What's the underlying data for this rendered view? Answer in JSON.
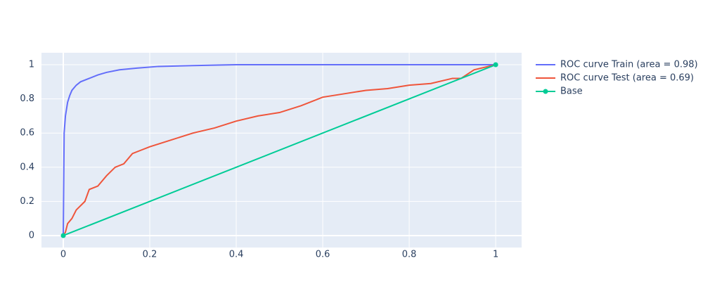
{
  "chart_data": {
    "type": "line",
    "xlim": [
      -0.0504,
      1.06
    ],
    "ylim": [
      -0.07,
      1.07
    ],
    "xticks": [
      0,
      0.2,
      0.4,
      0.6,
      0.8,
      1
    ],
    "yticks": [
      0,
      0.2,
      0.4,
      0.6,
      0.8,
      1
    ],
    "grid": true,
    "legend": "right",
    "series": [
      {
        "name": "ROC curve Train (area = 0.98)",
        "color": "#636efa",
        "markers": false,
        "x": [
          0,
          0.002,
          0.005,
          0.01,
          0.015,
          0.02,
          0.03,
          0.04,
          0.06,
          0.08,
          0.1,
          0.13,
          0.17,
          0.22,
          0.3,
          0.4,
          1
        ],
        "values": [
          0,
          0.6,
          0.7,
          0.78,
          0.82,
          0.85,
          0.88,
          0.9,
          0.92,
          0.94,
          0.955,
          0.97,
          0.98,
          0.99,
          0.995,
          1,
          1
        ]
      },
      {
        "name": "ROC curve Test (area = 0.69)",
        "color": "#ef553b",
        "markers": false,
        "x": [
          0,
          0.005,
          0.01,
          0.02,
          0.03,
          0.05,
          0.06,
          0.08,
          0.1,
          0.12,
          0.14,
          0.16,
          0.18,
          0.2,
          0.25,
          0.3,
          0.35,
          0.4,
          0.45,
          0.5,
          0.55,
          0.6,
          0.65,
          0.7,
          0.75,
          0.8,
          0.85,
          0.9,
          0.92,
          0.95,
          1
        ],
        "values": [
          0,
          0.02,
          0.07,
          0.1,
          0.15,
          0.2,
          0.27,
          0.29,
          0.35,
          0.4,
          0.42,
          0.48,
          0.5,
          0.52,
          0.56,
          0.6,
          0.63,
          0.67,
          0.7,
          0.72,
          0.76,
          0.81,
          0.83,
          0.85,
          0.86,
          0.88,
          0.89,
          0.92,
          0.92,
          0.97,
          1
        ]
      },
      {
        "name": "Base",
        "color": "#00cc96",
        "markers": true,
        "x": [
          0,
          1
        ],
        "values": [
          0,
          1
        ]
      }
    ]
  }
}
